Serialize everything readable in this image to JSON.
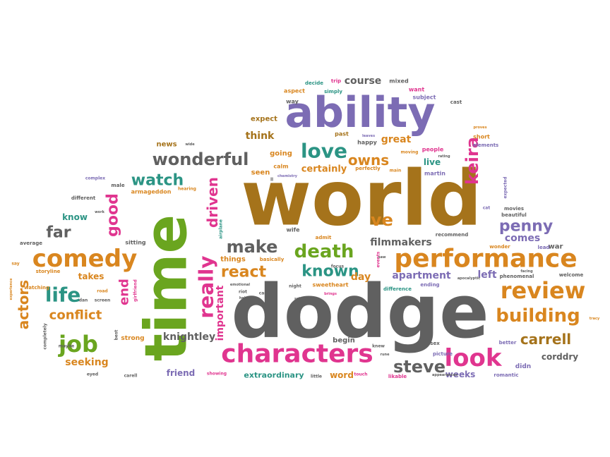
{
  "word_cloud": {
    "palette": {
      "orange": "#d9861f",
      "green": "#6aa51f",
      "brown": "#a5731b",
      "gray": "#606060",
      "purple": "#7c6cb4",
      "pink": "#e0358f",
      "teal": "#2b9484"
    },
    "words": [
      {
        "text": "world",
        "color": "brown"
      },
      {
        "text": "dodge",
        "color": "gray"
      },
      {
        "text": "time",
        "color": "green"
      },
      {
        "text": "ability",
        "color": "purple"
      },
      {
        "text": "performance",
        "color": "orange"
      },
      {
        "text": "characters",
        "color": "pink"
      },
      {
        "text": "comedy",
        "color": "orange"
      },
      {
        "text": "review",
        "color": "orange"
      },
      {
        "text": "really",
        "color": "pink"
      },
      {
        "text": "look",
        "color": "pink"
      },
      {
        "text": "building",
        "color": "orange"
      },
      {
        "text": "death",
        "color": "green"
      },
      {
        "text": "love",
        "color": "teal"
      },
      {
        "text": "wonderful",
        "color": "gray"
      },
      {
        "text": "life",
        "color": "teal"
      },
      {
        "text": "job",
        "color": "green"
      },
      {
        "text": "steve",
        "color": "gray"
      },
      {
        "text": "make",
        "color": "gray"
      },
      {
        "text": "watch",
        "color": "teal"
      },
      {
        "text": "known",
        "color": "teal"
      },
      {
        "text": "react",
        "color": "orange"
      },
      {
        "text": "penny",
        "color": "purple"
      },
      {
        "text": "carrell",
        "color": "brown"
      },
      {
        "text": "good",
        "color": "pink"
      },
      {
        "text": "far",
        "color": "gray"
      },
      {
        "text": "actors",
        "color": "orange"
      },
      {
        "text": "keira",
        "color": "pink"
      },
      {
        "text": "driven",
        "color": "pink"
      },
      {
        "text": "owns",
        "color": "orange"
      },
      {
        "text": "conflict",
        "color": "orange"
      },
      {
        "text": "end",
        "color": "pink"
      },
      {
        "text": "apartment",
        "color": "purple"
      },
      {
        "text": "filmmakers",
        "color": "gray"
      },
      {
        "text": "knightley",
        "color": "gray"
      },
      {
        "text": "course",
        "color": "gray"
      },
      {
        "text": "seeking",
        "color": "orange"
      },
      {
        "text": "certainly",
        "color": "orange"
      },
      {
        "text": "think",
        "color": "brown"
      },
      {
        "text": "great",
        "color": "orange"
      },
      {
        "text": "ve",
        "color": "orange"
      },
      {
        "text": "comes",
        "color": "purple"
      },
      {
        "text": "left",
        "color": "purple"
      },
      {
        "text": "day",
        "color": "orange"
      },
      {
        "text": "important",
        "color": "pink"
      },
      {
        "text": "corddry",
        "color": "gray"
      },
      {
        "text": "weeks",
        "color": "purple"
      },
      {
        "text": "extraordinary",
        "color": "teal"
      },
      {
        "text": "word",
        "color": "orange"
      },
      {
        "text": "friend",
        "color": "purple"
      },
      {
        "text": "live",
        "color": "teal"
      },
      {
        "text": "takes",
        "color": "orange"
      },
      {
        "text": "news",
        "color": "brown"
      },
      {
        "text": "expect",
        "color": "brown"
      },
      {
        "text": "going",
        "color": "orange"
      },
      {
        "text": "seen",
        "color": "orange"
      },
      {
        "text": "things",
        "color": "orange"
      },
      {
        "text": "know",
        "color": "teal"
      },
      {
        "text": "strong",
        "color": "orange"
      },
      {
        "text": "begin",
        "color": "gray"
      },
      {
        "text": "didn",
        "color": "purple"
      },
      {
        "text": "war",
        "color": "gray"
      },
      {
        "text": "sweetheart",
        "color": "orange"
      },
      {
        "text": "armageddon",
        "color": "orange"
      },
      {
        "text": "wife",
        "color": "gray"
      },
      {
        "text": "way",
        "color": "gray"
      },
      {
        "text": "mixed",
        "color": "gray"
      },
      {
        "text": "decide",
        "color": "teal"
      },
      {
        "text": "trip",
        "color": "pink"
      },
      {
        "text": "want",
        "color": "pink"
      },
      {
        "text": "aspect",
        "color": "orange"
      },
      {
        "text": "simply",
        "color": "teal"
      },
      {
        "text": "subject",
        "color": "purple"
      },
      {
        "text": "cast",
        "color": "gray"
      },
      {
        "text": "past",
        "color": "brown"
      },
      {
        "text": "happy",
        "color": "gray"
      },
      {
        "text": "short",
        "color": "orange"
      },
      {
        "text": "people",
        "color": "pink"
      },
      {
        "text": "elements",
        "color": "purple"
      },
      {
        "text": "perfectly",
        "color": "orange"
      },
      {
        "text": "martin",
        "color": "purple"
      },
      {
        "text": "calm",
        "color": "orange"
      },
      {
        "text": "sitting",
        "color": "gray"
      },
      {
        "text": "average",
        "color": "gray"
      },
      {
        "text": "storyline",
        "color": "orange"
      },
      {
        "text": "watching",
        "color": "orange"
      },
      {
        "text": "different",
        "color": "gray"
      },
      {
        "text": "basically",
        "color": "orange"
      },
      {
        "text": "admit",
        "color": "orange"
      },
      {
        "text": "recommend",
        "color": "gray"
      },
      {
        "text": "movies",
        "color": "gray"
      },
      {
        "text": "beautiful",
        "color": "gray"
      },
      {
        "text": "wonder",
        "color": "orange"
      },
      {
        "text": "lead",
        "color": "purple"
      },
      {
        "text": "welcome",
        "color": "gray"
      },
      {
        "text": "phenomenal",
        "color": "gray"
      },
      {
        "text": "difference",
        "color": "teal"
      },
      {
        "text": "ending",
        "color": "purple"
      },
      {
        "text": "picture",
        "color": "purple"
      },
      {
        "text": "better",
        "color": "purple"
      },
      {
        "text": "romantic",
        "color": "purple"
      },
      {
        "text": "likable",
        "color": "pink"
      },
      {
        "text": "sex",
        "color": "gray"
      },
      {
        "text": "little",
        "color": "gray"
      },
      {
        "text": "touch",
        "color": "pink"
      },
      {
        "text": "showing",
        "color": "pink"
      },
      {
        "text": "carell",
        "color": "gray"
      },
      {
        "text": "eyed",
        "color": "gray"
      },
      {
        "text": "maybe",
        "color": "gray"
      },
      {
        "text": "completely",
        "color": "gray"
      },
      {
        "text": "knew",
        "color": "gray"
      },
      {
        "text": "focus",
        "color": "gray"
      },
      {
        "text": "night",
        "color": "gray"
      },
      {
        "text": "car",
        "color": "gray"
      },
      {
        "text": "riot",
        "color": "gray"
      },
      {
        "text": "events",
        "color": "pink"
      },
      {
        "text": "say",
        "color": "orange"
      },
      {
        "text": "road",
        "color": "orange"
      },
      {
        "text": "dan",
        "color": "gray"
      },
      {
        "text": "screen",
        "color": "gray"
      },
      {
        "text": "best",
        "color": "gray"
      },
      {
        "text": "girlfriend",
        "color": "pink"
      },
      {
        "text": "male",
        "color": "gray"
      },
      {
        "text": "complex",
        "color": "purple"
      },
      {
        "text": "hearing",
        "color": "orange"
      },
      {
        "text": "work",
        "color": "gray"
      },
      {
        "text": "airplane",
        "color": "teal"
      },
      {
        "text": "emotional",
        "color": "gray"
      },
      {
        "text": "help",
        "color": "gray"
      },
      {
        "text": "school",
        "color": "gray"
      },
      {
        "text": "brings",
        "color": "pink"
      },
      {
        "text": "appearances",
        "color": "gray"
      },
      {
        "text": "rune",
        "color": "gray"
      },
      {
        "text": "expected",
        "color": "purple"
      },
      {
        "text": "cat",
        "color": "purple"
      },
      {
        "text": "facing",
        "color": "gray"
      },
      {
        "text": "apocalyptic",
        "color": "gray"
      },
      {
        "text": "moving",
        "color": "orange"
      },
      {
        "text": "main",
        "color": "orange"
      },
      {
        "text": "chemistry",
        "color": "purple"
      },
      {
        "text": "leaves",
        "color": "purple"
      },
      {
        "text": "rating",
        "color": "gray"
      },
      {
        "text": "proves",
        "color": "orange"
      },
      {
        "text": "wide",
        "color": "gray"
      },
      {
        "text": "ll",
        "color": "gray"
      },
      {
        "text": "saw",
        "color": "gray"
      },
      {
        "text": "experience",
        "color": "orange"
      },
      {
        "text": "tracy",
        "color": "orange"
      }
    ]
  }
}
